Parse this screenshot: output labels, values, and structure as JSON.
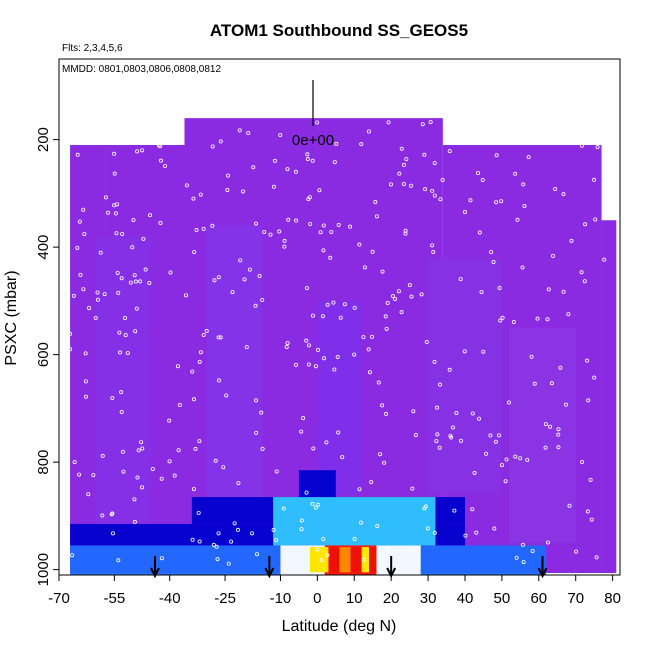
{
  "chart_data": {
    "type": "heatmap",
    "title": "ATOM1 Southbound SS_GEOS5",
    "subtitle_flights": "Flts: 2,3,4,5,6",
    "subtitle_dates": "MMDD: 0801,0803,0806,0808,0812",
    "xlabel": "Latitude (deg N)",
    "ylabel": "PSXC (mbar)",
    "xlim": [
      -70,
      82
    ],
    "ylim": [
      1010,
      50
    ],
    "y_inverted": true,
    "x_ticks": [
      "-70",
      "-55",
      "-40",
      "-25",
      "-10",
      "0",
      "10",
      "20",
      "30",
      "40",
      "50",
      "60",
      "70",
      "80"
    ],
    "x_tick_values": [
      -70,
      -55,
      -40,
      -25,
      -10,
      0,
      10,
      20,
      30,
      40,
      50,
      60,
      70,
      80
    ],
    "y_ticks": [
      "200",
      "400",
      "600",
      "800",
      "1000"
    ],
    "y_tick_values": [
      200,
      400,
      600,
      800,
      1000
    ],
    "colorbar_label": "0e+00",
    "colorbar_value": 0,
    "colors": {
      "background": "#8a2be2",
      "blue_dark": "#0000cc",
      "blue_mid": "#1e6bff",
      "cyan": "#33c7ff",
      "white": "#ffffff",
      "yellow": "#ffe600",
      "orange": "#ff8800",
      "red": "#ee1100"
    },
    "columns": [
      {
        "x0": -67,
        "x1": -57,
        "top": 210
      },
      {
        "x0": -57,
        "x1": -36,
        "top": 210
      },
      {
        "x0": -36,
        "x1": 34,
        "top": 160
      },
      {
        "x0": 34,
        "x1": 77,
        "top": 210
      },
      {
        "x0": 77,
        "x1": 81,
        "top": 350
      }
    ],
    "surface_band_value_layers": [
      {
        "x0": -67,
        "x1": 40,
        "p0": 955,
        "p1": 1010,
        "level": 0.35
      },
      {
        "x0": -67,
        "x1": 40,
        "p0": 915,
        "p1": 955,
        "level": 0.2
      },
      {
        "x0": -34,
        "x1": 40,
        "p0": 865,
        "p1": 915,
        "level": 0.18
      },
      {
        "x0": -12,
        "x1": 32,
        "p0": 865,
        "p1": 955,
        "level": 0.5
      },
      {
        "x0": -10,
        "x1": 28,
        "p0": 955,
        "p1": 1010,
        "level": 0.7
      },
      {
        "x0": 2,
        "x1": 16,
        "p0": 955,
        "p1": 1010,
        "level": 1.0
      },
      {
        "x0": 40,
        "x1": 62,
        "p0": 955,
        "p1": 1010,
        "level": 0.3
      },
      {
        "x0": -5,
        "x1": 5,
        "p0": 815,
        "p1": 865,
        "level": 0.15
      }
    ],
    "arrows_latitude": [
      -44,
      -13,
      20,
      61
    ]
  }
}
